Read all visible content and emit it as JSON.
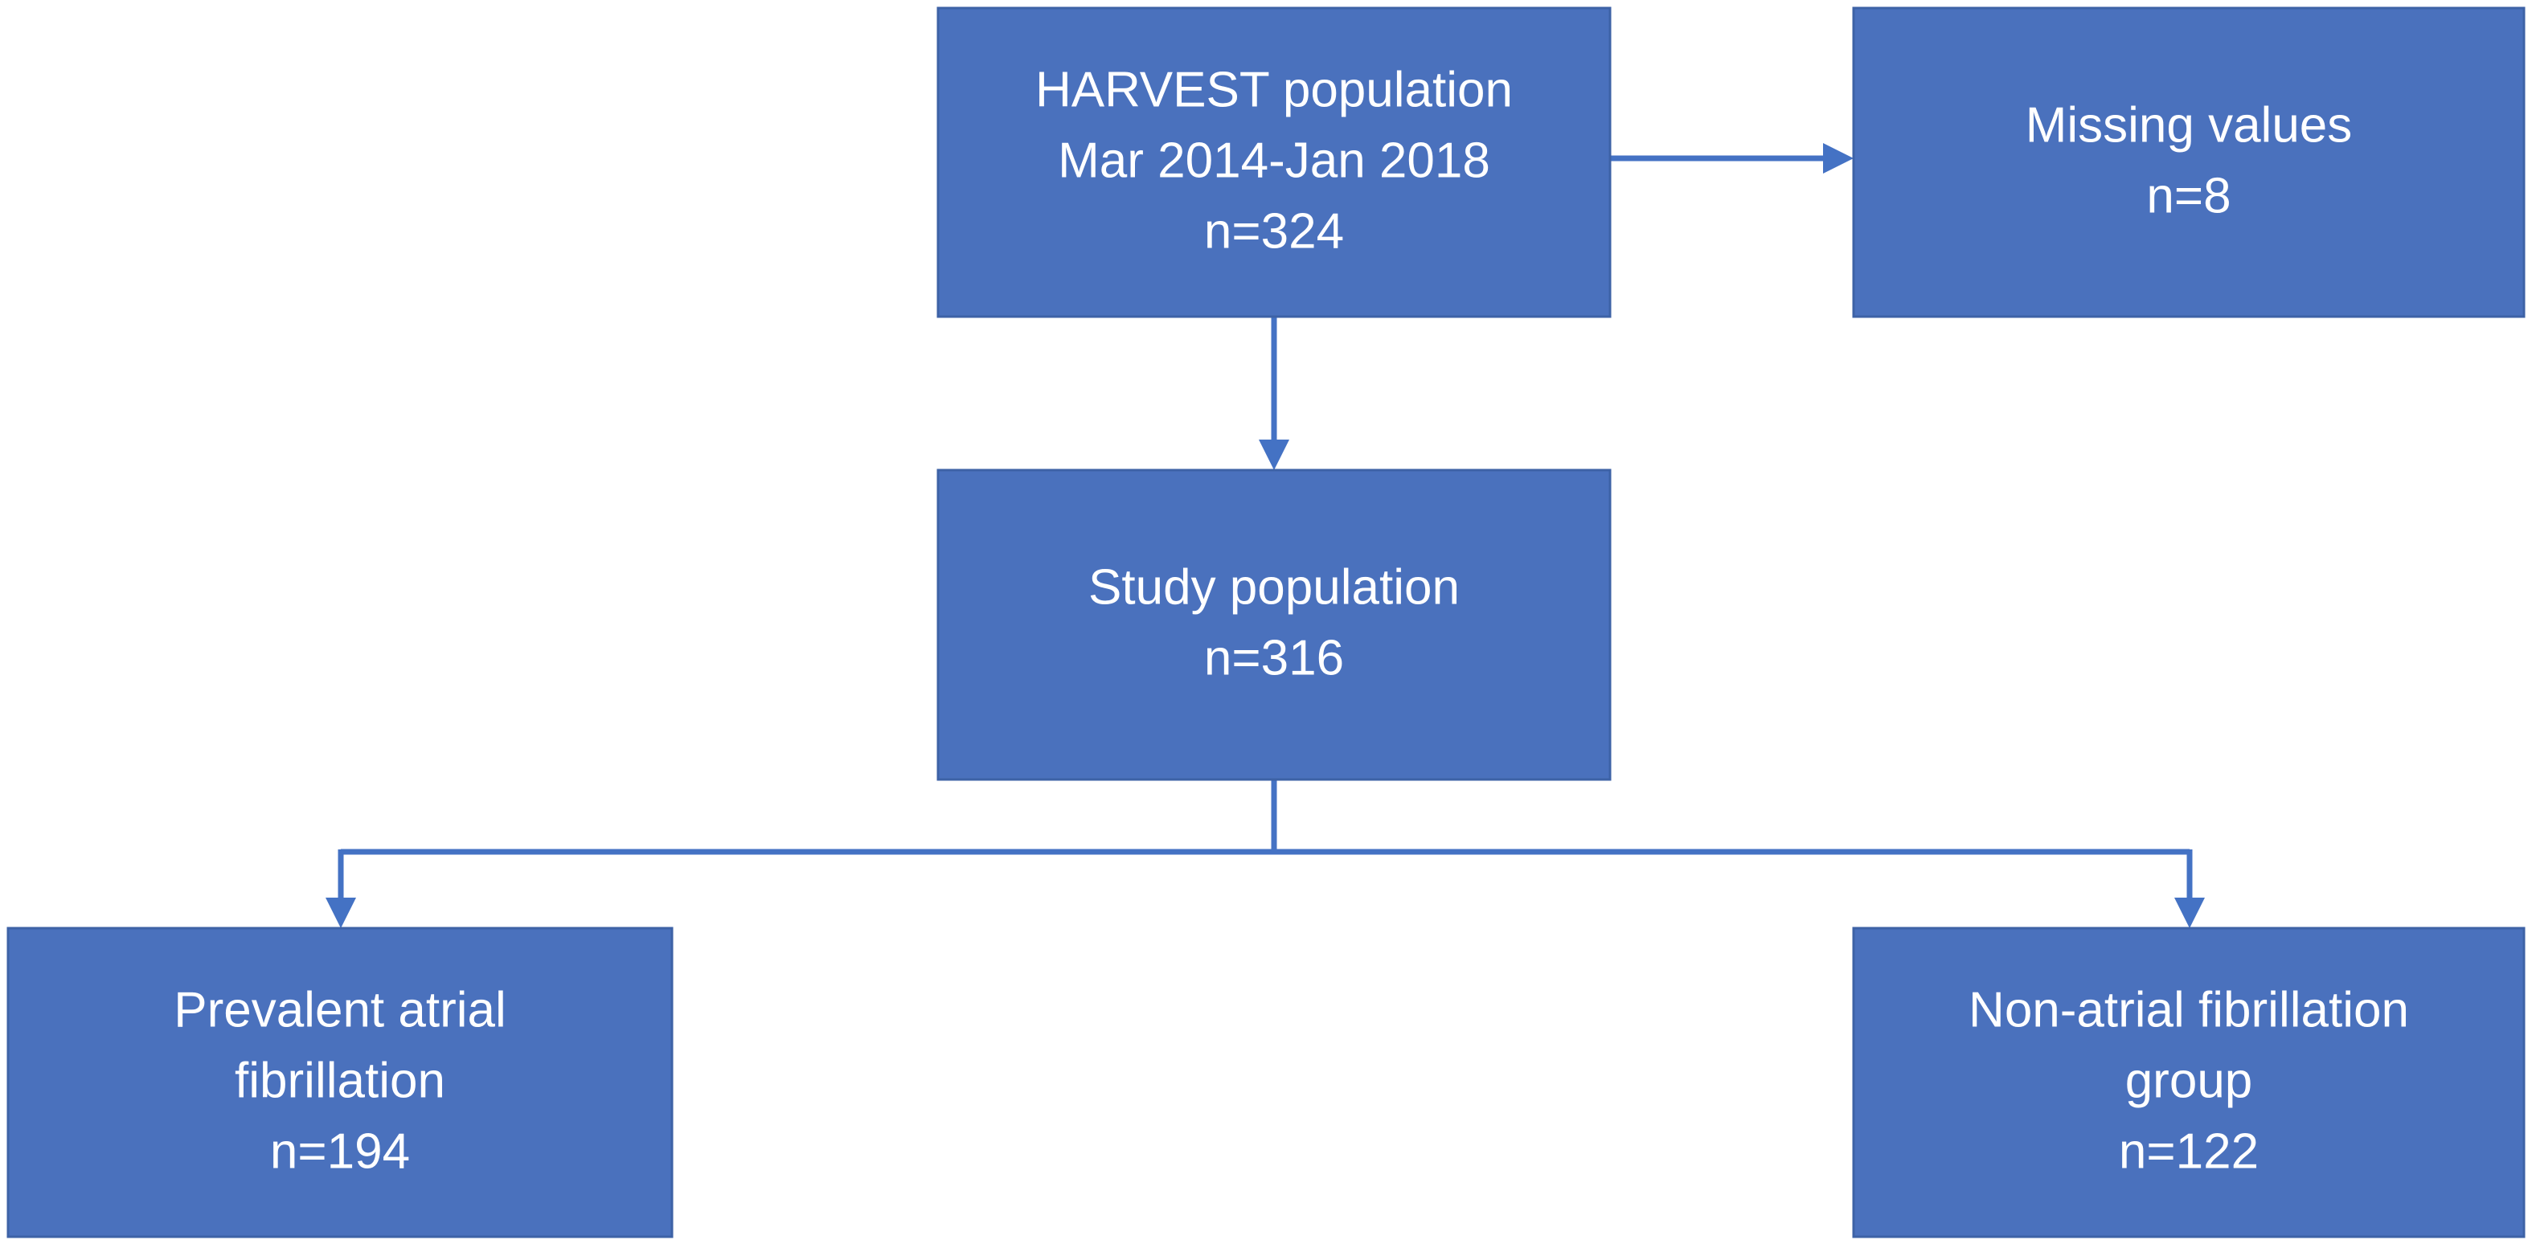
{
  "nodes": [
    {
      "lines": [
        "HARVEST population",
        "Mar 2014-Jan 2018",
        "n=324"
      ]
    },
    {
      "lines": [
        "Missing values",
        "n=8"
      ]
    },
    {
      "lines": [
        "Study population",
        "n=316"
      ]
    },
    {
      "lines": [
        "Prevalent atrial",
        "fibrillation",
        "n=194"
      ]
    },
    {
      "lines": [
        "Non-atrial fibrillation",
        "group",
        "n=122"
      ]
    }
  ]
}
